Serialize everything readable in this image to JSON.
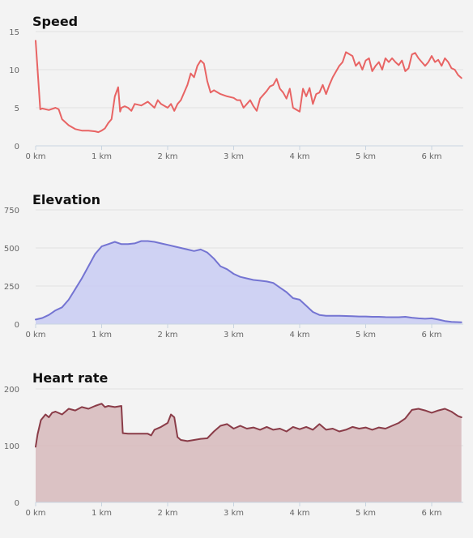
{
  "chart_data": [
    {
      "type": "line",
      "title": "Speed",
      "xlabel": "",
      "ylabel": "",
      "x_unit": "km",
      "xlim": [
        0,
        6.45
      ],
      "ylim": [
        0,
        15
      ],
      "yticks": [
        0,
        5,
        10,
        15
      ],
      "xticks": [
        "0 km",
        "1 km",
        "2 km",
        "3 km",
        "4 km",
        "5 km",
        "6 km"
      ],
      "grid": true,
      "legend": "none",
      "line_color": "#e86464",
      "fill_color": "",
      "series": [
        {
          "x": [
            0,
            0.03,
            0.07,
            0.1,
            0.2,
            0.3,
            0.35,
            0.4,
            0.5,
            0.6,
            0.7,
            0.8,
            0.9,
            0.95,
            1.0,
            1.05,
            1.1,
            1.15,
            1.2,
            1.25,
            1.28,
            1.3,
            1.35,
            1.4,
            1.45,
            1.5,
            1.6,
            1.7,
            1.8,
            1.85,
            1.9,
            2.0,
            2.05,
            2.1,
            2.15,
            2.2,
            2.3,
            2.35,
            2.4,
            2.45,
            2.5,
            2.55,
            2.6,
            2.65,
            2.7,
            2.8,
            2.9,
            3.0,
            3.05,
            3.1,
            3.15,
            3.2,
            3.25,
            3.3,
            3.35,
            3.4,
            3.5,
            3.55,
            3.6,
            3.65,
            3.7,
            3.75,
            3.8,
            3.85,
            3.9,
            4.0,
            4.05,
            4.1,
            4.15,
            4.2,
            4.25,
            4.3,
            4.35,
            4.4,
            4.45,
            4.5,
            4.6,
            4.65,
            4.7,
            4.8,
            4.85,
            4.9,
            4.95,
            5.0,
            5.05,
            5.1,
            5.15,
            5.2,
            5.25,
            5.3,
            5.35,
            5.4,
            5.45,
            5.5,
            5.55,
            5.6,
            5.65,
            5.7,
            5.75,
            5.8,
            5.85,
            5.9,
            5.95,
            6.0,
            6.05,
            6.1,
            6.15,
            6.2,
            6.25,
            6.3,
            6.35,
            6.4,
            6.45
          ],
          "y": [
            13.8,
            10,
            4.8,
            4.9,
            4.7,
            5.0,
            4.8,
            3.5,
            2.7,
            2.2,
            2.0,
            2.0,
            1.9,
            1.8,
            2.0,
            2.3,
            3.0,
            3.5,
            6.5,
            7.7,
            4.5,
            5.0,
            5.2,
            5.0,
            4.6,
            5.5,
            5.3,
            5.8,
            5.0,
            6.0,
            5.5,
            5.0,
            5.5,
            4.6,
            5.5,
            6.0,
            8.0,
            9.5,
            9.0,
            10.5,
            11.2,
            10.8,
            8.5,
            7.0,
            7.3,
            6.8,
            6.5,
            6.3,
            6.0,
            6.0,
            5.0,
            5.5,
            6.0,
            5.2,
            4.6,
            6.2,
            7.2,
            7.8,
            8.0,
            8.8,
            7.5,
            7.0,
            6.2,
            7.5,
            5.0,
            4.5,
            7.5,
            6.5,
            7.6,
            5.5,
            6.8,
            7.0,
            8.0,
            6.8,
            8.0,
            9.0,
            10.5,
            11.0,
            12.3,
            11.8,
            10.5,
            11.0,
            10.0,
            11.2,
            11.5,
            9.8,
            10.5,
            11.0,
            10.0,
            11.5,
            11.0,
            11.5,
            11.0,
            10.6,
            11.2,
            9.8,
            10.2,
            12.0,
            12.2,
            11.5,
            11.0,
            10.5,
            11.0,
            11.8,
            11.0,
            11.3,
            10.5,
            11.5,
            11.0,
            10.2,
            10.0,
            9.3,
            8.9
          ]
        }
      ]
    },
    {
      "type": "area",
      "title": "Elevation",
      "xlabel": "",
      "ylabel": "",
      "x_unit": "km",
      "xlim": [
        0,
        6.45
      ],
      "ylim": [
        0,
        750
      ],
      "yticks": [
        0,
        250,
        500,
        750
      ],
      "xticks": [
        "0 km",
        "1 km",
        "2 km",
        "3 km",
        "4 km",
        "5 km",
        "6 km"
      ],
      "grid": true,
      "legend": "none",
      "line_color": "#7474d2",
      "fill_color": "#c8cbf2",
      "series": [
        {
          "x": [
            0,
            0.1,
            0.2,
            0.3,
            0.4,
            0.5,
            0.6,
            0.7,
            0.8,
            0.9,
            1.0,
            1.1,
            1.2,
            1.3,
            1.4,
            1.5,
            1.6,
            1.7,
            1.8,
            1.9,
            2.0,
            2.1,
            2.2,
            2.3,
            2.4,
            2.5,
            2.6,
            2.7,
            2.8,
            2.9,
            3.0,
            3.1,
            3.2,
            3.3,
            3.4,
            3.5,
            3.6,
            3.7,
            3.8,
            3.9,
            4.0,
            4.1,
            4.2,
            4.3,
            4.4,
            4.5,
            4.6,
            4.7,
            4.8,
            4.9,
            5.0,
            5.1,
            5.2,
            5.3,
            5.4,
            5.5,
            5.6,
            5.7,
            5.8,
            5.9,
            6.0,
            6.1,
            6.2,
            6.3,
            6.45
          ],
          "y": [
            30,
            40,
            60,
            90,
            110,
            160,
            230,
            300,
            380,
            460,
            510,
            525,
            540,
            525,
            525,
            530,
            545,
            545,
            540,
            530,
            520,
            510,
            500,
            490,
            480,
            490,
            470,
            430,
            380,
            360,
            330,
            310,
            300,
            290,
            285,
            280,
            270,
            240,
            210,
            170,
            160,
            120,
            80,
            60,
            55,
            55,
            55,
            53,
            52,
            50,
            50,
            48,
            48,
            46,
            45,
            45,
            48,
            42,
            38,
            35,
            38,
            30,
            20,
            15,
            12
          ]
        }
      ]
    },
    {
      "type": "area",
      "title": "Heart rate",
      "xlabel": "",
      "ylabel": "",
      "x_unit": "km",
      "xlim": [
        0,
        6.45
      ],
      "ylim": [
        0,
        200
      ],
      "yticks": [
        0,
        100,
        200
      ],
      "xticks": [
        "0 km",
        "1 km",
        "2 km",
        "3 km",
        "4 km",
        "5 km",
        "6 km"
      ],
      "grid": true,
      "legend": "none",
      "line_color": "#8a3c48",
      "fill_color": "#d6b8bb",
      "series": [
        {
          "x": [
            0,
            0.03,
            0.08,
            0.15,
            0.2,
            0.25,
            0.3,
            0.4,
            0.5,
            0.6,
            0.7,
            0.8,
            0.9,
            1.0,
            1.05,
            1.1,
            1.2,
            1.3,
            1.32,
            1.4,
            1.5,
            1.6,
            1.7,
            1.75,
            1.8,
            1.9,
            2.0,
            2.05,
            2.1,
            2.15,
            2.2,
            2.3,
            2.4,
            2.5,
            2.6,
            2.7,
            2.8,
            2.9,
            3.0,
            3.1,
            3.2,
            3.3,
            3.4,
            3.5,
            3.6,
            3.7,
            3.8,
            3.9,
            4.0,
            4.1,
            4.2,
            4.3,
            4.4,
            4.5,
            4.6,
            4.7,
            4.8,
            4.9,
            5.0,
            5.1,
            5.2,
            5.3,
            5.4,
            5.5,
            5.6,
            5.7,
            5.8,
            5.9,
            6.0,
            6.1,
            6.2,
            6.3,
            6.4,
            6.45
          ],
          "y": [
            98,
            120,
            145,
            155,
            150,
            158,
            160,
            155,
            165,
            162,
            168,
            165,
            170,
            174,
            168,
            170,
            168,
            170,
            122,
            121,
            121,
            121,
            121,
            118,
            128,
            133,
            140,
            155,
            150,
            115,
            110,
            108,
            110,
            112,
            113,
            125,
            135,
            138,
            130,
            135,
            130,
            132,
            128,
            133,
            128,
            130,
            125,
            133,
            129,
            133,
            128,
            138,
            128,
            130,
            125,
            128,
            133,
            130,
            132,
            128,
            132,
            130,
            135,
            140,
            148,
            163,
            165,
            162,
            158,
            162,
            165,
            160,
            152,
            150
          ]
        }
      ]
    }
  ]
}
